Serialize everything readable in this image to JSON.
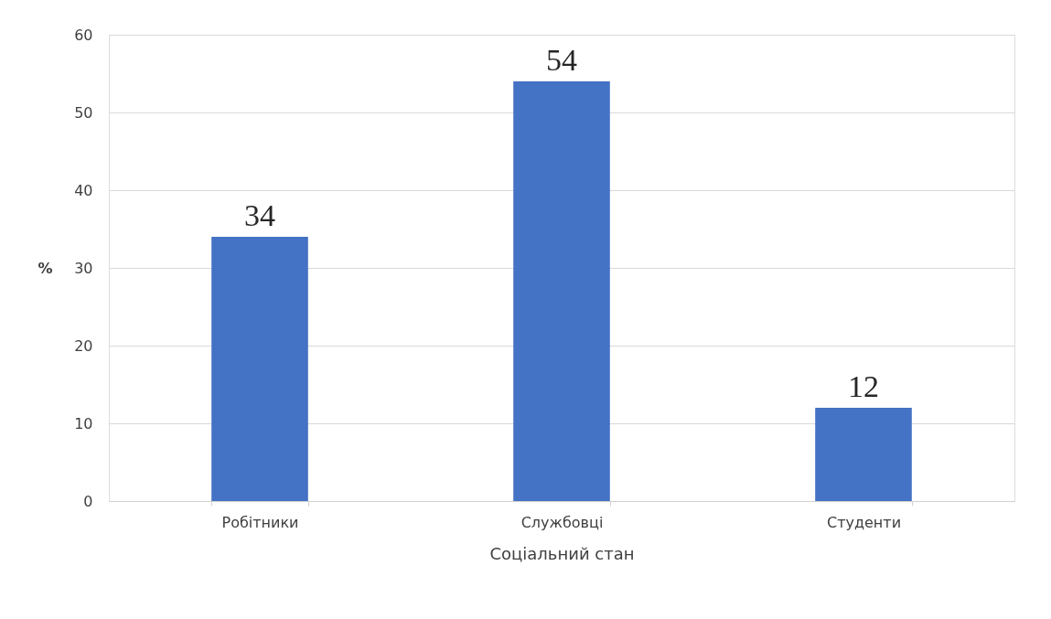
{
  "chart_data": {
    "type": "bar",
    "xlabel": "Соціальний стан",
    "ylabel": "%",
    "categories": [
      "Робітники",
      "Службовці",
      "Студенти"
    ],
    "values": [
      34,
      54,
      12
    ],
    "color": "#4472c4",
    "ylim": [
      0,
      60
    ],
    "yticks": [
      0,
      10,
      20,
      30,
      40,
      50,
      60
    ],
    "grid": "y",
    "data_labels": true
  }
}
